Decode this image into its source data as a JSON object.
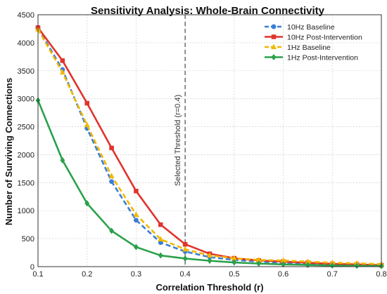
{
  "chart_data": {
    "type": "line",
    "title": "Sensitivity Analysis: Whole-Brain Connectivity",
    "xlabel": "Correlation Threshold (r)",
    "ylabel": "Number of Surviving Connections",
    "xlim": [
      0.1,
      0.8
    ],
    "ylim": [
      0,
      4500
    ],
    "xticks": [
      "0.1",
      "0.2",
      "0.3",
      "0.4",
      "0.5",
      "0.6",
      "0.7",
      "0.8"
    ],
    "yticks": [
      "0",
      "500",
      "1000",
      "1500",
      "2000",
      "2500",
      "3000",
      "3500",
      "4000",
      "4500"
    ],
    "grid": true,
    "legend_position": "top-right",
    "x": [
      0.1,
      0.15,
      0.2,
      0.25,
      0.3,
      0.35,
      0.4,
      0.45,
      0.5,
      0.55,
      0.6,
      0.65,
      0.7,
      0.75,
      0.8
    ],
    "series": [
      {
        "name": "10Hz Baseline",
        "color": "#3a7fd5",
        "dash": "dash",
        "marker": "circle",
        "values": [
          4260,
          3520,
          2470,
          1520,
          830,
          430,
          270,
          170,
          120,
          90,
          70,
          55,
          45,
          35,
          25
        ]
      },
      {
        "name": "10Hz Post-Intervention",
        "color": "#e0342c",
        "dash": "solid",
        "marker": "square",
        "values": [
          4270,
          3680,
          2920,
          2120,
          1350,
          750,
          400,
          230,
          150,
          110,
          90,
          70,
          50,
          40,
          25
        ]
      },
      {
        "name": "1Hz Baseline",
        "color": "#f0b800",
        "dash": "dash",
        "marker": "triangle",
        "values": [
          4240,
          3470,
          2530,
          1620,
          930,
          490,
          310,
          200,
          150,
          120,
          110,
          90,
          70,
          60,
          45
        ]
      },
      {
        "name": "1Hz Post-Intervention",
        "color": "#2aa14a",
        "dash": "solid",
        "marker": "diamond",
        "values": [
          2970,
          1900,
          1130,
          640,
          350,
          200,
          145,
          105,
          75,
          55,
          40,
          30,
          20,
          15,
          10
        ]
      }
    ],
    "annotations": [
      {
        "type": "vline",
        "x": 0.4,
        "color": "#777777",
        "label": "Selected Threshold (r=0.4)"
      }
    ]
  }
}
